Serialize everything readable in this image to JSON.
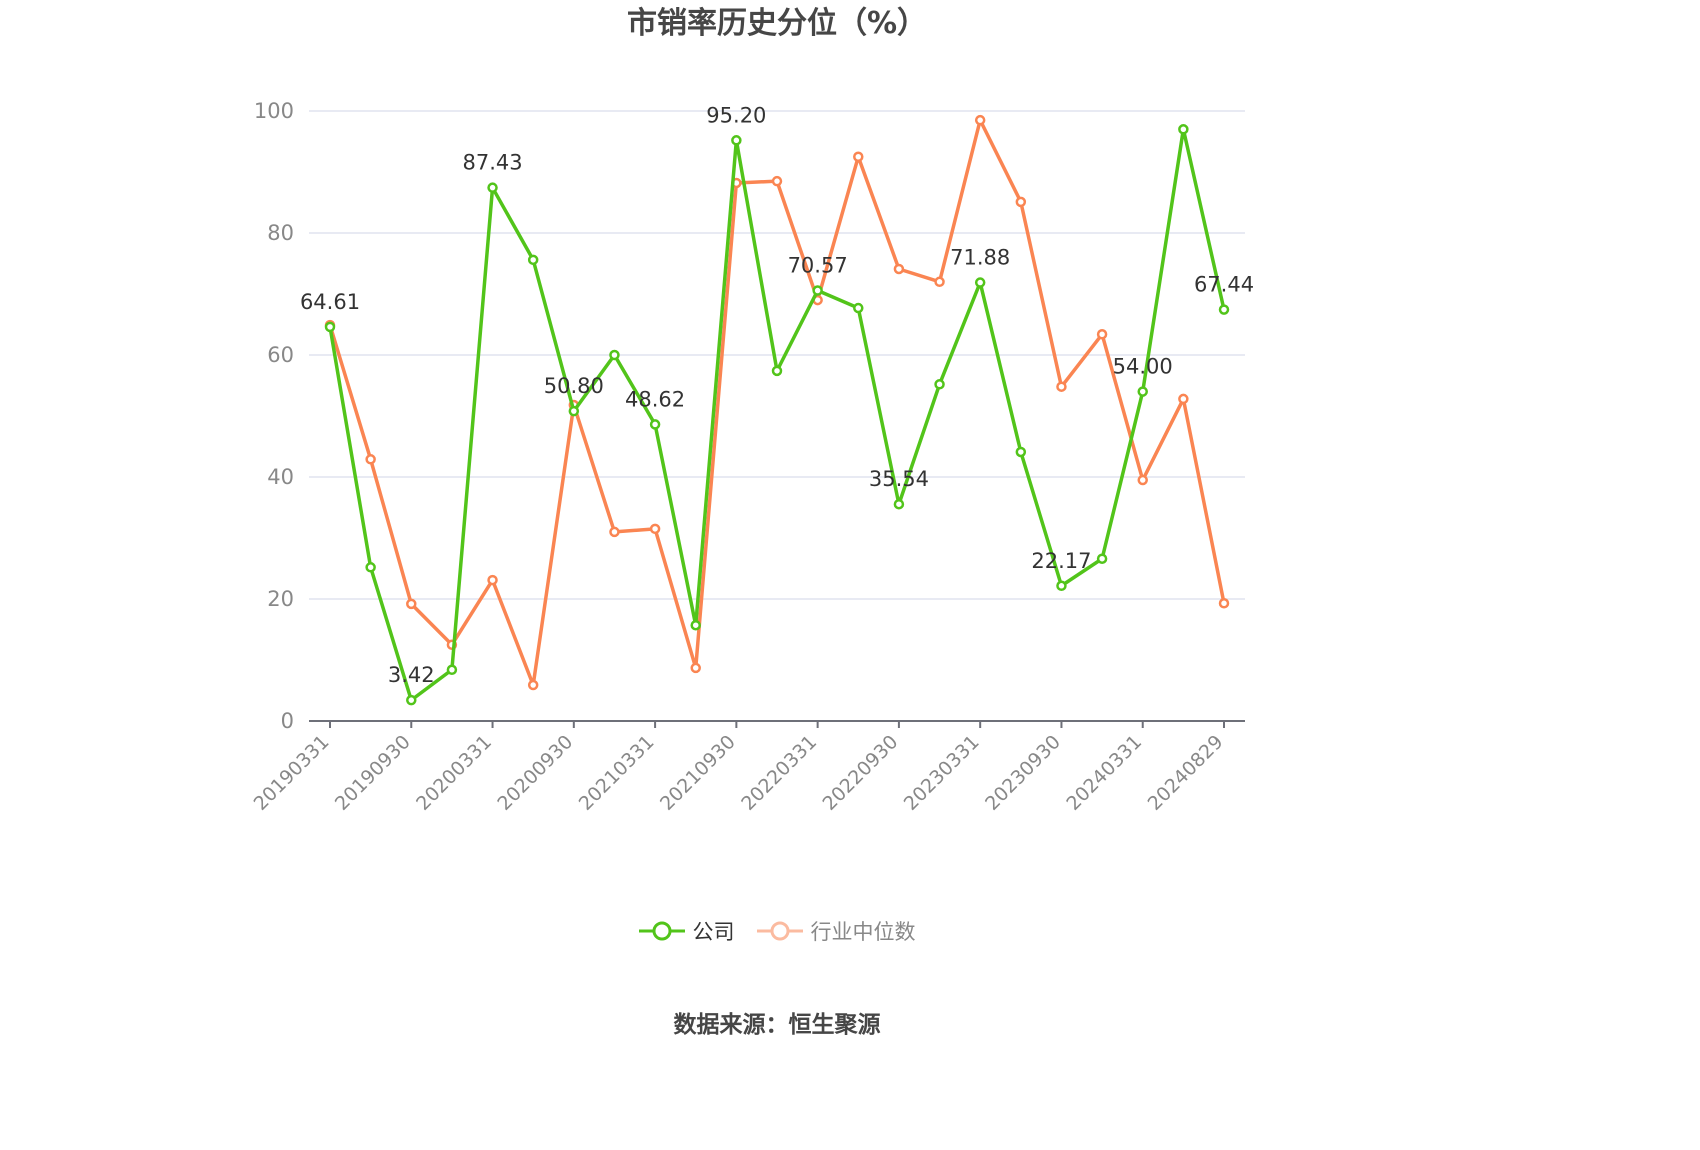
{
  "title": "市销率历史分位（%）",
  "legend": {
    "company_label": "公司",
    "industry_label": "行业中位数"
  },
  "source": "数据来源：恒生聚源",
  "colors": {
    "company": "#52c41a",
    "industry": "#fa8552",
    "industry_legend": "#fbbba0",
    "grid": "#e0e3ef",
    "axis": "#6e7079",
    "tick_label": "#888888",
    "data_label": "#333333"
  },
  "chart_data": {
    "type": "line",
    "title": "市销率历史分位（%）",
    "xlabel": "",
    "ylabel": "",
    "ylim": [
      0,
      100
    ],
    "yticks": [
      0,
      20,
      40,
      60,
      80,
      100
    ],
    "grid": true,
    "legend_position": "bottom",
    "x": [
      "20190331",
      "20190630",
      "20190930",
      "20191231",
      "20200331",
      "20200630",
      "20200930",
      "20201231",
      "20210331",
      "20210630",
      "20210930",
      "20211231",
      "20220331",
      "20220630",
      "20220930",
      "20221231",
      "20230331",
      "20230630",
      "20230930",
      "20231231",
      "20240331",
      "20240630",
      "20240829"
    ],
    "xtick_labels": [
      "20190331",
      "20190930",
      "20200331",
      "20200930",
      "20210331",
      "20210930",
      "20220331",
      "20220930",
      "20230331",
      "20230930",
      "20240331",
      "20240829"
    ],
    "xtick_indices": [
      0,
      2,
      4,
      6,
      8,
      10,
      12,
      14,
      16,
      18,
      20,
      22
    ],
    "series": [
      {
        "name": "公司",
        "values": [
          64.61,
          25.2,
          3.42,
          8.4,
          87.43,
          75.6,
          50.8,
          60.0,
          48.62,
          15.7,
          95.2,
          57.4,
          70.57,
          67.7,
          35.54,
          55.2,
          71.88,
          44.1,
          22.17,
          26.6,
          54.0,
          97.0,
          67.44
        ],
        "labeled_indices": [
          0,
          2,
          4,
          6,
          8,
          10,
          12,
          14,
          16,
          18,
          20,
          22
        ],
        "labels": [
          "64.61",
          "3.42",
          "87.43",
          "50.80",
          "48.62",
          "95.20",
          "70.57",
          "35.54",
          "71.88",
          "22.17",
          "54.00",
          "67.44"
        ]
      },
      {
        "name": "行业中位数",
        "values": [
          64.9,
          42.9,
          19.2,
          12.5,
          23.1,
          5.9,
          51.8,
          31.0,
          31.5,
          8.7,
          88.2,
          88.5,
          69.0,
          92.5,
          74.1,
          72.0,
          98.5,
          85.1,
          54.8,
          63.4,
          39.5,
          52.8,
          19.3
        ]
      }
    ]
  }
}
